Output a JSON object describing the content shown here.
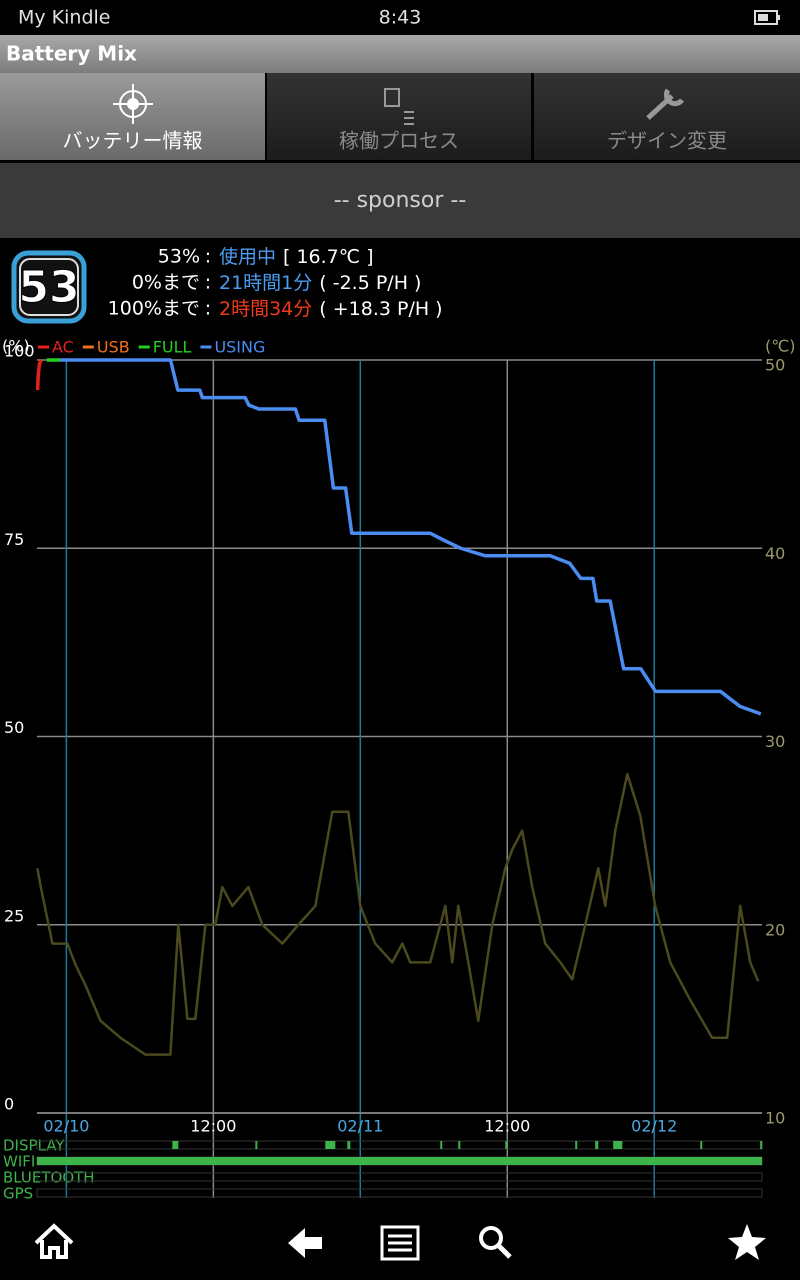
{
  "status_bar": {
    "device": "My Kindle",
    "time": "8:43"
  },
  "app_bar": {
    "title": "Battery Mix"
  },
  "tabs": [
    {
      "label": "バッテリー情報",
      "selected": true
    },
    {
      "label": "稼働プロセス",
      "selected": false
    },
    {
      "label": "デザイン変更",
      "selected": false
    }
  ],
  "sponsor": "-- sponsor --",
  "battery": {
    "level": "53",
    "rows": [
      {
        "label": "53%",
        "sep": ":",
        "value": "使用中",
        "value_color": "#4a9cf0",
        "detail": "[ 16.7℃ ]"
      },
      {
        "label": "0%まで",
        "sep": ":",
        "value": "21時間1分",
        "value_color": "#4a9cf0",
        "detail": "( -2.5 P/H )"
      },
      {
        "label": "100%まで",
        "sep": ":",
        "value": "2時間34分",
        "value_color": "#f03a1a",
        "detail": "( +18.3 P/H )"
      }
    ]
  },
  "chart_data": {
    "type": "line",
    "ylabel": "(%)",
    "y2label": "(℃)",
    "xlim": [
      -2.4,
      56.8
    ],
    "xticks": [
      {
        "value": 0,
        "label": "02/10"
      },
      {
        "value": 12,
        "label": "12:00"
      },
      {
        "value": 24,
        "label": "02/11"
      },
      {
        "value": 36,
        "label": "12:00"
      },
      {
        "value": 48,
        "label": "02/12"
      }
    ],
    "ylim": [
      0,
      100
    ],
    "yticks": [
      0,
      25,
      50,
      75,
      100
    ],
    "y2lim": [
      10,
      50
    ],
    "y2ticks": [
      10,
      20,
      30,
      40,
      50
    ],
    "grid": true,
    "series": [
      {
        "name": "AC",
        "color": "#e8201c",
        "x": [
          -2.35,
          -2.3,
          -2.2,
          -2.05
        ],
        "values": [
          96,
          98,
          99.5,
          100
        ]
      },
      {
        "name": "USB",
        "color": "#f07020",
        "x": [],
        "values": []
      },
      {
        "name": "FULL",
        "color": "#22d022",
        "x": [
          -1.6,
          -0.5
        ],
        "values": [
          100,
          100
        ]
      },
      {
        "name": "USING",
        "color": "#4a8cf0",
        "x": [
          -0.5,
          8.5,
          9.1,
          10.9,
          11.1,
          14.6,
          14.9,
          15.7,
          18.7,
          19.0,
          21.1,
          21.8,
          22.8,
          23.3,
          29.7,
          30.9,
          32.2,
          34.2,
          39.5,
          41.1,
          42.0,
          43.0,
          43.3,
          44.4,
          45.5,
          46.9,
          47.3,
          48.1,
          53.4,
          54.2,
          55.0,
          56.7
        ],
        "values": [
          100,
          100,
          96,
          96,
          95,
          95,
          94,
          93.5,
          93.5,
          92,
          92,
          83,
          83,
          77,
          77,
          76,
          75,
          74,
          74,
          73,
          71,
          71,
          68,
          68,
          59,
          59,
          58,
          56,
          56,
          55,
          54,
          53
        ]
      },
      {
        "color": "#4a4a1e",
        "axis": "y2",
        "x": [
          -2.37,
          -2.12,
          -1.55,
          -1.14,
          0.08,
          0.73,
          1.55,
          2.78,
          4.41,
          6.45,
          8.49,
          9.14,
          9.88,
          10.53,
          11.35,
          12.16,
          12.73,
          13.55,
          14.86,
          16.0,
          17.63,
          18.94,
          20.33,
          21.71,
          23.02,
          24.0,
          25.22,
          26.61,
          27.43,
          28.08,
          29.71,
          30.94,
          31.51,
          32.0,
          32.82,
          33.63,
          34.78,
          35.84,
          36.41,
          37.22,
          38.04,
          39.1,
          40.33,
          41.31,
          42.37,
          43.43,
          44.0,
          44.82,
          45.8,
          46.86,
          48.08,
          49.31,
          50.94,
          52.73,
          53.96,
          55.02,
          55.84,
          56.49
        ],
        "values": [
          23.0,
          22.1,
          20.3,
          19.0,
          19.0,
          17.9,
          16.8,
          14.9,
          14.0,
          13.1,
          13.1,
          20.0,
          15.0,
          15.0,
          20.0,
          20.0,
          22.0,
          21.0,
          22.0,
          20.0,
          19.0,
          20.0,
          21.0,
          26.0,
          26.0,
          21.0,
          19.0,
          18.0,
          19.0,
          18.0,
          18.0,
          21.0,
          18.0,
          21.0,
          18.0,
          14.9,
          20.0,
          23.0,
          24.0,
          25.0,
          22.0,
          19.0,
          18.0,
          17.1,
          20.0,
          23.0,
          21.0,
          25.0,
          28.0,
          25.8,
          21.0,
          18.0,
          16.0,
          14.0,
          14.0,
          21.0,
          18.0,
          17.0
        ]
      }
    ],
    "status_rows": [
      {
        "label": "DISPLAY",
        "on": [
          [
            8.65,
            9.14
          ],
          [
            15.43,
            15.59
          ],
          [
            21.14,
            21.96
          ],
          [
            22.94,
            23.18
          ],
          [
            30.53,
            30.69
          ],
          [
            32.0,
            32.16
          ],
          [
            35.84,
            36.0
          ],
          [
            41.55,
            41.71
          ],
          [
            43.18,
            43.43
          ],
          [
            44.65,
            45.39
          ],
          [
            51.76,
            51.92
          ],
          [
            56.65,
            56.8
          ]
        ]
      },
      {
        "label": "WIFI",
        "on": [
          [
            -2.4,
            56.8
          ]
        ]
      },
      {
        "label": "BLUETOOTH",
        "on": []
      },
      {
        "label": "GPS",
        "on": []
      }
    ]
  }
}
